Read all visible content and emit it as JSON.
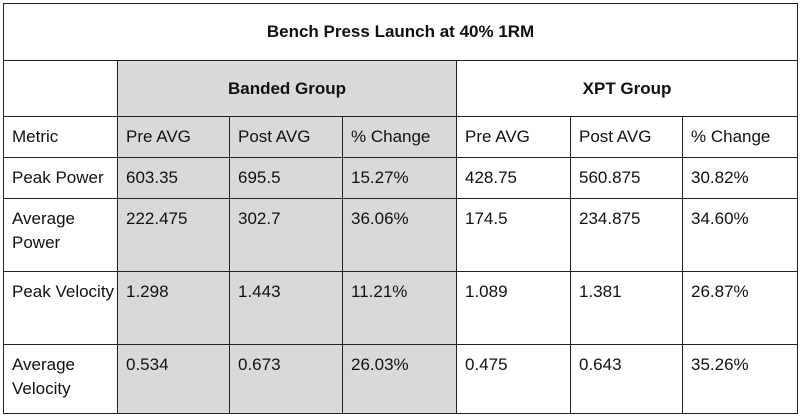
{
  "table": {
    "title": "Bench Press Launch at 40% 1RM",
    "groups": [
      "Banded Group",
      "XPT Group"
    ],
    "columns": [
      "Metric",
      "Pre AVG",
      "Post AVG",
      "% Change",
      "Pre AVG",
      "Post AVG",
      "% Change"
    ],
    "rows": [
      [
        "Peak Power",
        "603.35",
        "695.5",
        "15.27%",
        "428.75",
        "560.875",
        "30.82%"
      ],
      [
        "Average Power",
        "222.475",
        "302.7",
        "36.06%",
        "174.5",
        "234.875",
        "34.60%"
      ],
      [
        "Peak Velocity",
        "1.298",
        "1.443",
        "11.21%",
        "1.089",
        "1.381",
        "26.87%"
      ],
      [
        "Average Velocity",
        "0.534",
        "0.673",
        "26.03%",
        "0.475",
        "0.643",
        "35.26%"
      ]
    ]
  },
  "colors": {
    "shade": "#d9d9d9",
    "border": "#222222"
  }
}
